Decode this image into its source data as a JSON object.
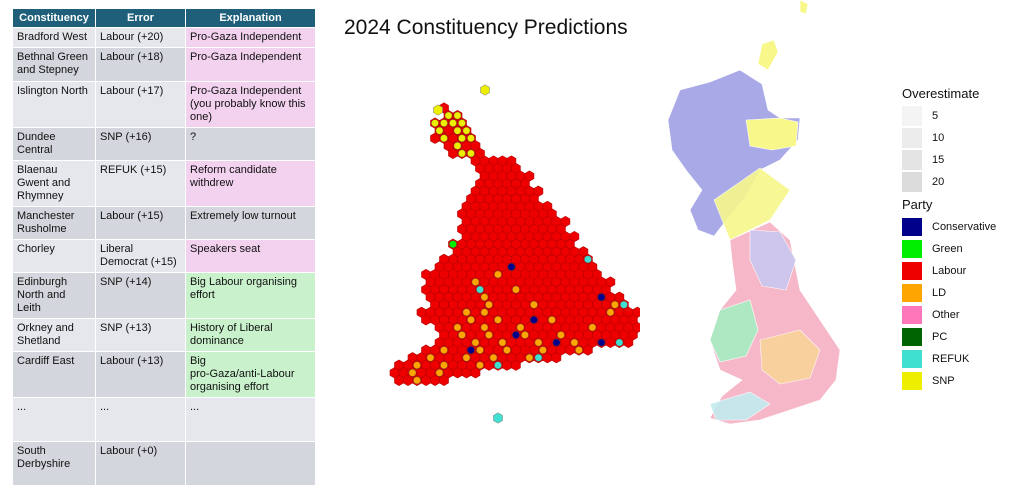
{
  "table": {
    "headers": [
      "Constituency",
      "Error",
      "Explanation"
    ],
    "rows": [
      {
        "constituency": "Bradford West",
        "error": "Labour (+20)",
        "explanation": "Pro-Gaza Independent",
        "tone": "pink"
      },
      {
        "constituency": "Bethnal Green\nand Stepney",
        "error": "Labour (+18)",
        "explanation": "Pro-Gaza Independent",
        "tone": "pink"
      },
      {
        "constituency": "Islington North",
        "error": "Labour (+17)",
        "explanation": "Pro-Gaza Independent\n(you probably know this\none)",
        "tone": "pink"
      },
      {
        "constituency": "Dundee\nCentral",
        "error": "SNP (+16)",
        "explanation": "?",
        "tone": "grey"
      },
      {
        "constituency": "Blaenau\nGwent and\nRhymney",
        "error": "REFUK (+15)",
        "explanation": "Reform candidate\nwithdrew",
        "tone": "pink"
      },
      {
        "constituency": "Manchester\nRusholme",
        "error": "Labour (+15)",
        "explanation": "Extremely low turnout",
        "tone": "grey"
      },
      {
        "constituency": "Chorley",
        "error": "Liberal\nDemocrat (+15)",
        "explanation": "Speakers seat",
        "tone": "pink"
      },
      {
        "constituency": "Edinburgh\nNorth and\nLeith",
        "error": "SNP (+14)",
        "explanation": "Big Labour organising\neffort",
        "tone": "green"
      },
      {
        "constituency": "Orkney and\nShetland",
        "error": "SNP (+13)",
        "explanation": "History of Liberal\ndominance",
        "tone": "green"
      },
      {
        "constituency": "Cardiff East",
        "error": "Labour (+13)",
        "explanation": "Big\npro-Gaza/anti-Labour\norganising effort",
        "tone": "green"
      },
      {
        "constituency": "...",
        "error": "...",
        "explanation": "...",
        "tone": "grey"
      },
      {
        "constituency": "South\nDerbyshire",
        "error": "Labour (+0)",
        "explanation": "",
        "tone": "grey"
      }
    ]
  },
  "chart_data": {
    "type": "map",
    "title": "2024 Constituency Predictions",
    "legend": {
      "overestimate_title": "Overestimate",
      "overestimate_levels": [
        "5",
        "10",
        "15",
        "20"
      ],
      "party_title": "Party",
      "parties": [
        {
          "name": "Conservative",
          "color": "#00008b"
        },
        {
          "name": "Green",
          "color": "#00ee00"
        },
        {
          "name": "Labour",
          "color": "#ee0000"
        },
        {
          "name": "LD",
          "color": "#ffa500"
        },
        {
          "name": "Other",
          "color": "#ff77bb"
        },
        {
          "name": "PC",
          "color": "#006400"
        },
        {
          "name": "REFUK",
          "color": "#40e0d0"
        },
        {
          "name": "SNP",
          "color": "#eeee00"
        }
      ]
    }
  },
  "colors": {
    "header_bg": "#1f5f7a",
    "hex_edge": "#b30000",
    "scotland_geo": "#a9a9e8",
    "snp_geo": "#f7f78a"
  }
}
